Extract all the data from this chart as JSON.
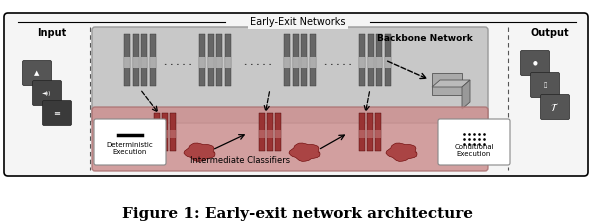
{
  "title": "Figure 1: Early-exit network architecture",
  "title_fontsize": 11,
  "title_fontweight": "bold",
  "bg_color": "#ffffff",
  "early_exit_label": "Early-Exit Networks",
  "backbone_label": "Backbone Network",
  "intermediate_label": "Intermediate Classifiers",
  "input_label": "Input",
  "output_label": "Output",
  "det_exec_label": "Deterministic\nExecution",
  "cond_exec_label": "Conditional\nExecution",
  "backbone_bg": "#c8c8c8",
  "classifier_bg": "#cc8888",
  "layer_dark": "#666666",
  "layer_red": "#993333",
  "outer_bg": "#f5f5f5"
}
